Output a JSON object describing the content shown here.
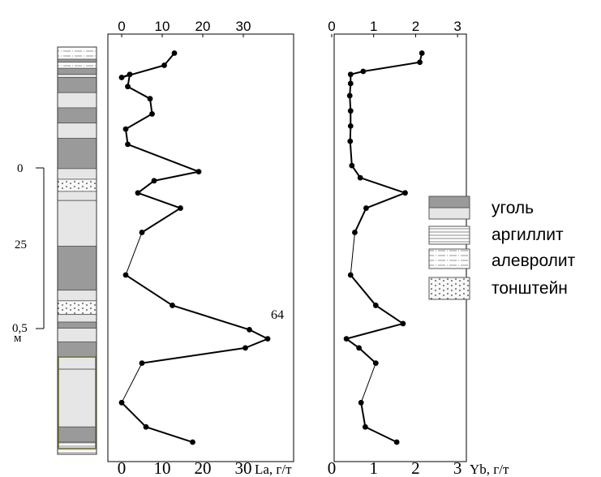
{
  "colors": {
    "coal": "#9a9a9a",
    "argillite": "#e6e6e6",
    "tuff": "#f2f2f2",
    "frame": "#555555",
    "hatch_outline": "#6b6b2a",
    "line": "#000000"
  },
  "depth_scale": {
    "labels": [
      "0",
      "25",
      "0,5"
    ],
    "unit": "м"
  },
  "column": {
    "layers": [
      {
        "top": 0.0,
        "bottom": 0.04,
        "lith": "алевролит"
      },
      {
        "top": 0.04,
        "bottom": 0.05,
        "lith": "уголь"
      },
      {
        "top": 0.05,
        "bottom": 0.07,
        "lith": "алевролит"
      },
      {
        "top": 0.07,
        "bottom": 0.09,
        "lith": "уголь"
      },
      {
        "top": 0.09,
        "bottom": 0.1,
        "lith": "аргиллит"
      },
      {
        "top": 0.1,
        "bottom": 0.15,
        "lith": "уголь"
      },
      {
        "top": 0.15,
        "bottom": 0.2,
        "lith": "аргиллит"
      },
      {
        "top": 0.2,
        "bottom": 0.25,
        "lith": "уголь"
      },
      {
        "top": 0.25,
        "bottom": 0.3,
        "lith": "аргиллит"
      },
      {
        "top": 0.3,
        "bottom": 0.4,
        "lith": "уголь"
      },
      {
        "top": 0.4,
        "bottom": 0.435,
        "lith": "аргиллит"
      },
      {
        "top": 0.435,
        "bottom": 0.475,
        "lith": "тонштейн"
      },
      {
        "top": 0.475,
        "bottom": 0.505,
        "lith": "аргиллит"
      },
      {
        "top": 0.505,
        "bottom": 0.655,
        "lith": "аргиллит"
      },
      {
        "top": 0.655,
        "bottom": 0.8,
        "lith": "уголь"
      },
      {
        "top": 0.8,
        "bottom": 0.835,
        "lith": "аргиллит"
      },
      {
        "top": 0.835,
        "bottom": 0.88,
        "lith": "тонштейн"
      },
      {
        "top": 0.88,
        "bottom": 0.905,
        "lith": "аргиллит"
      },
      {
        "top": 0.905,
        "bottom": 0.925,
        "lith": "уголь"
      },
      {
        "top": 0.925,
        "bottom": 0.97,
        "lith": "аргиллит"
      },
      {
        "top": 0.97,
        "bottom": 1.02,
        "lith": "уголь"
      },
      {
        "top": 1.02,
        "bottom": 1.06,
        "lith": "аргиллит"
      },
      {
        "top": 1.06,
        "bottom": 1.25,
        "lith": "аргиллит"
      },
      {
        "top": 1.25,
        "bottom": 1.3,
        "lith": "уголь"
      },
      {
        "top": 1.3,
        "bottom": 1.34,
        "lith": "аргиллит"
      }
    ]
  },
  "chart_data": [
    {
      "type": "line",
      "xlabel": "La, г/т",
      "x_ticks_top": [
        "0",
        "10",
        "20",
        "30"
      ],
      "x_ticks_bottom": [
        "0",
        "10",
        "20",
        "30"
      ],
      "xlim": [
        0,
        36
      ],
      "annotation": "64",
      "points": [
        [
          13,
          0.02
        ],
        [
          10.5,
          0.06
        ],
        [
          0,
          0.1
        ],
        [
          2,
          0.09
        ],
        [
          1.5,
          0.13
        ],
        [
          7,
          0.17
        ],
        [
          7.5,
          0.22
        ],
        [
          1,
          0.27
        ],
        [
          1.5,
          0.32
        ],
        [
          19,
          0.41
        ],
        [
          8,
          0.44
        ],
        [
          4,
          0.48
        ],
        [
          14.5,
          0.53
        ],
        [
          5,
          0.61
        ],
        [
          1,
          0.75
        ],
        [
          12.5,
          0.85
        ],
        [
          31.5,
          0.93
        ],
        [
          36,
          0.96
        ],
        [
          30.5,
          0.99
        ],
        [
          5,
          1.04
        ],
        [
          0,
          1.17
        ],
        [
          6,
          1.25
        ],
        [
          17.5,
          1.3
        ]
      ]
    },
    {
      "type": "line",
      "xlabel": "Yb, г/т",
      "x_ticks_top": [
        "0",
        "1",
        "2",
        "3"
      ],
      "x_ticks_bottom": [
        "0",
        "1",
        "2",
        "3"
      ],
      "xlim": [
        0,
        3.5
      ],
      "points": [
        [
          2.15,
          0.02
        ],
        [
          2.1,
          0.05
        ],
        [
          0.75,
          0.08
        ],
        [
          0.45,
          0.09
        ],
        [
          0.45,
          0.12
        ],
        [
          0.43,
          0.16
        ],
        [
          0.45,
          0.21
        ],
        [
          0.45,
          0.26
        ],
        [
          0.44,
          0.31
        ],
        [
          0.48,
          0.39
        ],
        [
          0.68,
          0.43
        ],
        [
          1.75,
          0.48
        ],
        [
          0.82,
          0.53
        ],
        [
          0.55,
          0.61
        ],
        [
          0.45,
          0.75
        ],
        [
          1.05,
          0.85
        ],
        [
          1.7,
          0.91
        ],
        [
          0.35,
          0.96
        ],
        [
          0.65,
          0.99
        ],
        [
          1.05,
          1.04
        ],
        [
          0.7,
          1.17
        ],
        [
          0.8,
          1.25
        ],
        [
          1.55,
          1.3
        ]
      ]
    }
  ],
  "legend": {
    "items": [
      {
        "label": "уголь",
        "pattern": "coal"
      },
      {
        "label": "аргиллит",
        "pattern": "argillite"
      },
      {
        "label": "алевролит",
        "pattern": "siltstone"
      },
      {
        "label": "тонштейн",
        "pattern": "tuff"
      }
    ]
  }
}
